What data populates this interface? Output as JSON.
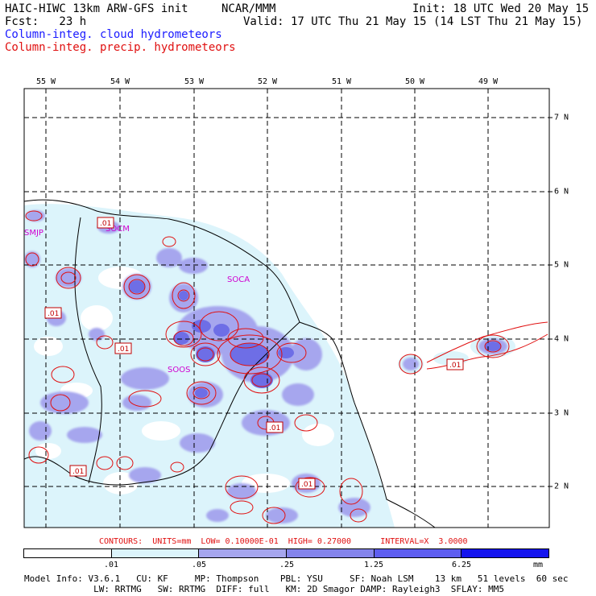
{
  "header": {
    "model": "HAIC-HIWC 13km ARW-GFS init",
    "org": "NCAR/MMM",
    "init": "Init: 18 UTC Wed 20 May 15",
    "fcst": "Fcst:   23 h",
    "valid": "Valid: 17 UTC Thu 21 May 15 (14 LST Thu 21 May 15)",
    "line_cloud": "Column-integ. cloud hydrometeors",
    "line_precip": "Column-integ. precip. hydrometeors"
  },
  "map": {
    "lon_labels": [
      "55 W",
      "54 W",
      "53 W",
      "52 W",
      "51 W",
      "50 W",
      "49 W"
    ],
    "lat_labels": [
      "7 N",
      "6 N",
      "5 N",
      "4 N",
      "3 N",
      "2 N"
    ],
    "stations": [
      "SMJP",
      "SOCM",
      "SOCA",
      "SOOS"
    ],
    "contour_label": ".01",
    "colors": {
      "cloud_light": "#dcf4fb",
      "cloud_mid": "#a6a6ee",
      "cloud_dark": "#6e6ee6",
      "precip": "#e01010"
    }
  },
  "contours_info": "CONTOURS:  UNITS=mm  LOW= 0.10000E-01  HIGH= 0.27000      INTERVAL=X  3.0000",
  "colorbar": {
    "ticks": [
      ".01",
      ".05",
      ".25",
      "1.25",
      "6.25"
    ],
    "units": "mm",
    "colors": [
      "#ffffff",
      "#dcf4fb",
      "#a6a6ee",
      "#8484ec",
      "#5e5ef0",
      "#1414ee"
    ]
  },
  "footer": {
    "line1": "Model Info: V3.6.1   CU: KF     MP: Thompson    PBL: YSU     SF: Noah LSM    13 km   51 levels  60 sec",
    "line2": "             LW: RRTMG   SW: RRTMG  DIFF: full   KM: 2D Smagor DAMP: Rayleigh3  SFLAY: MM5"
  }
}
